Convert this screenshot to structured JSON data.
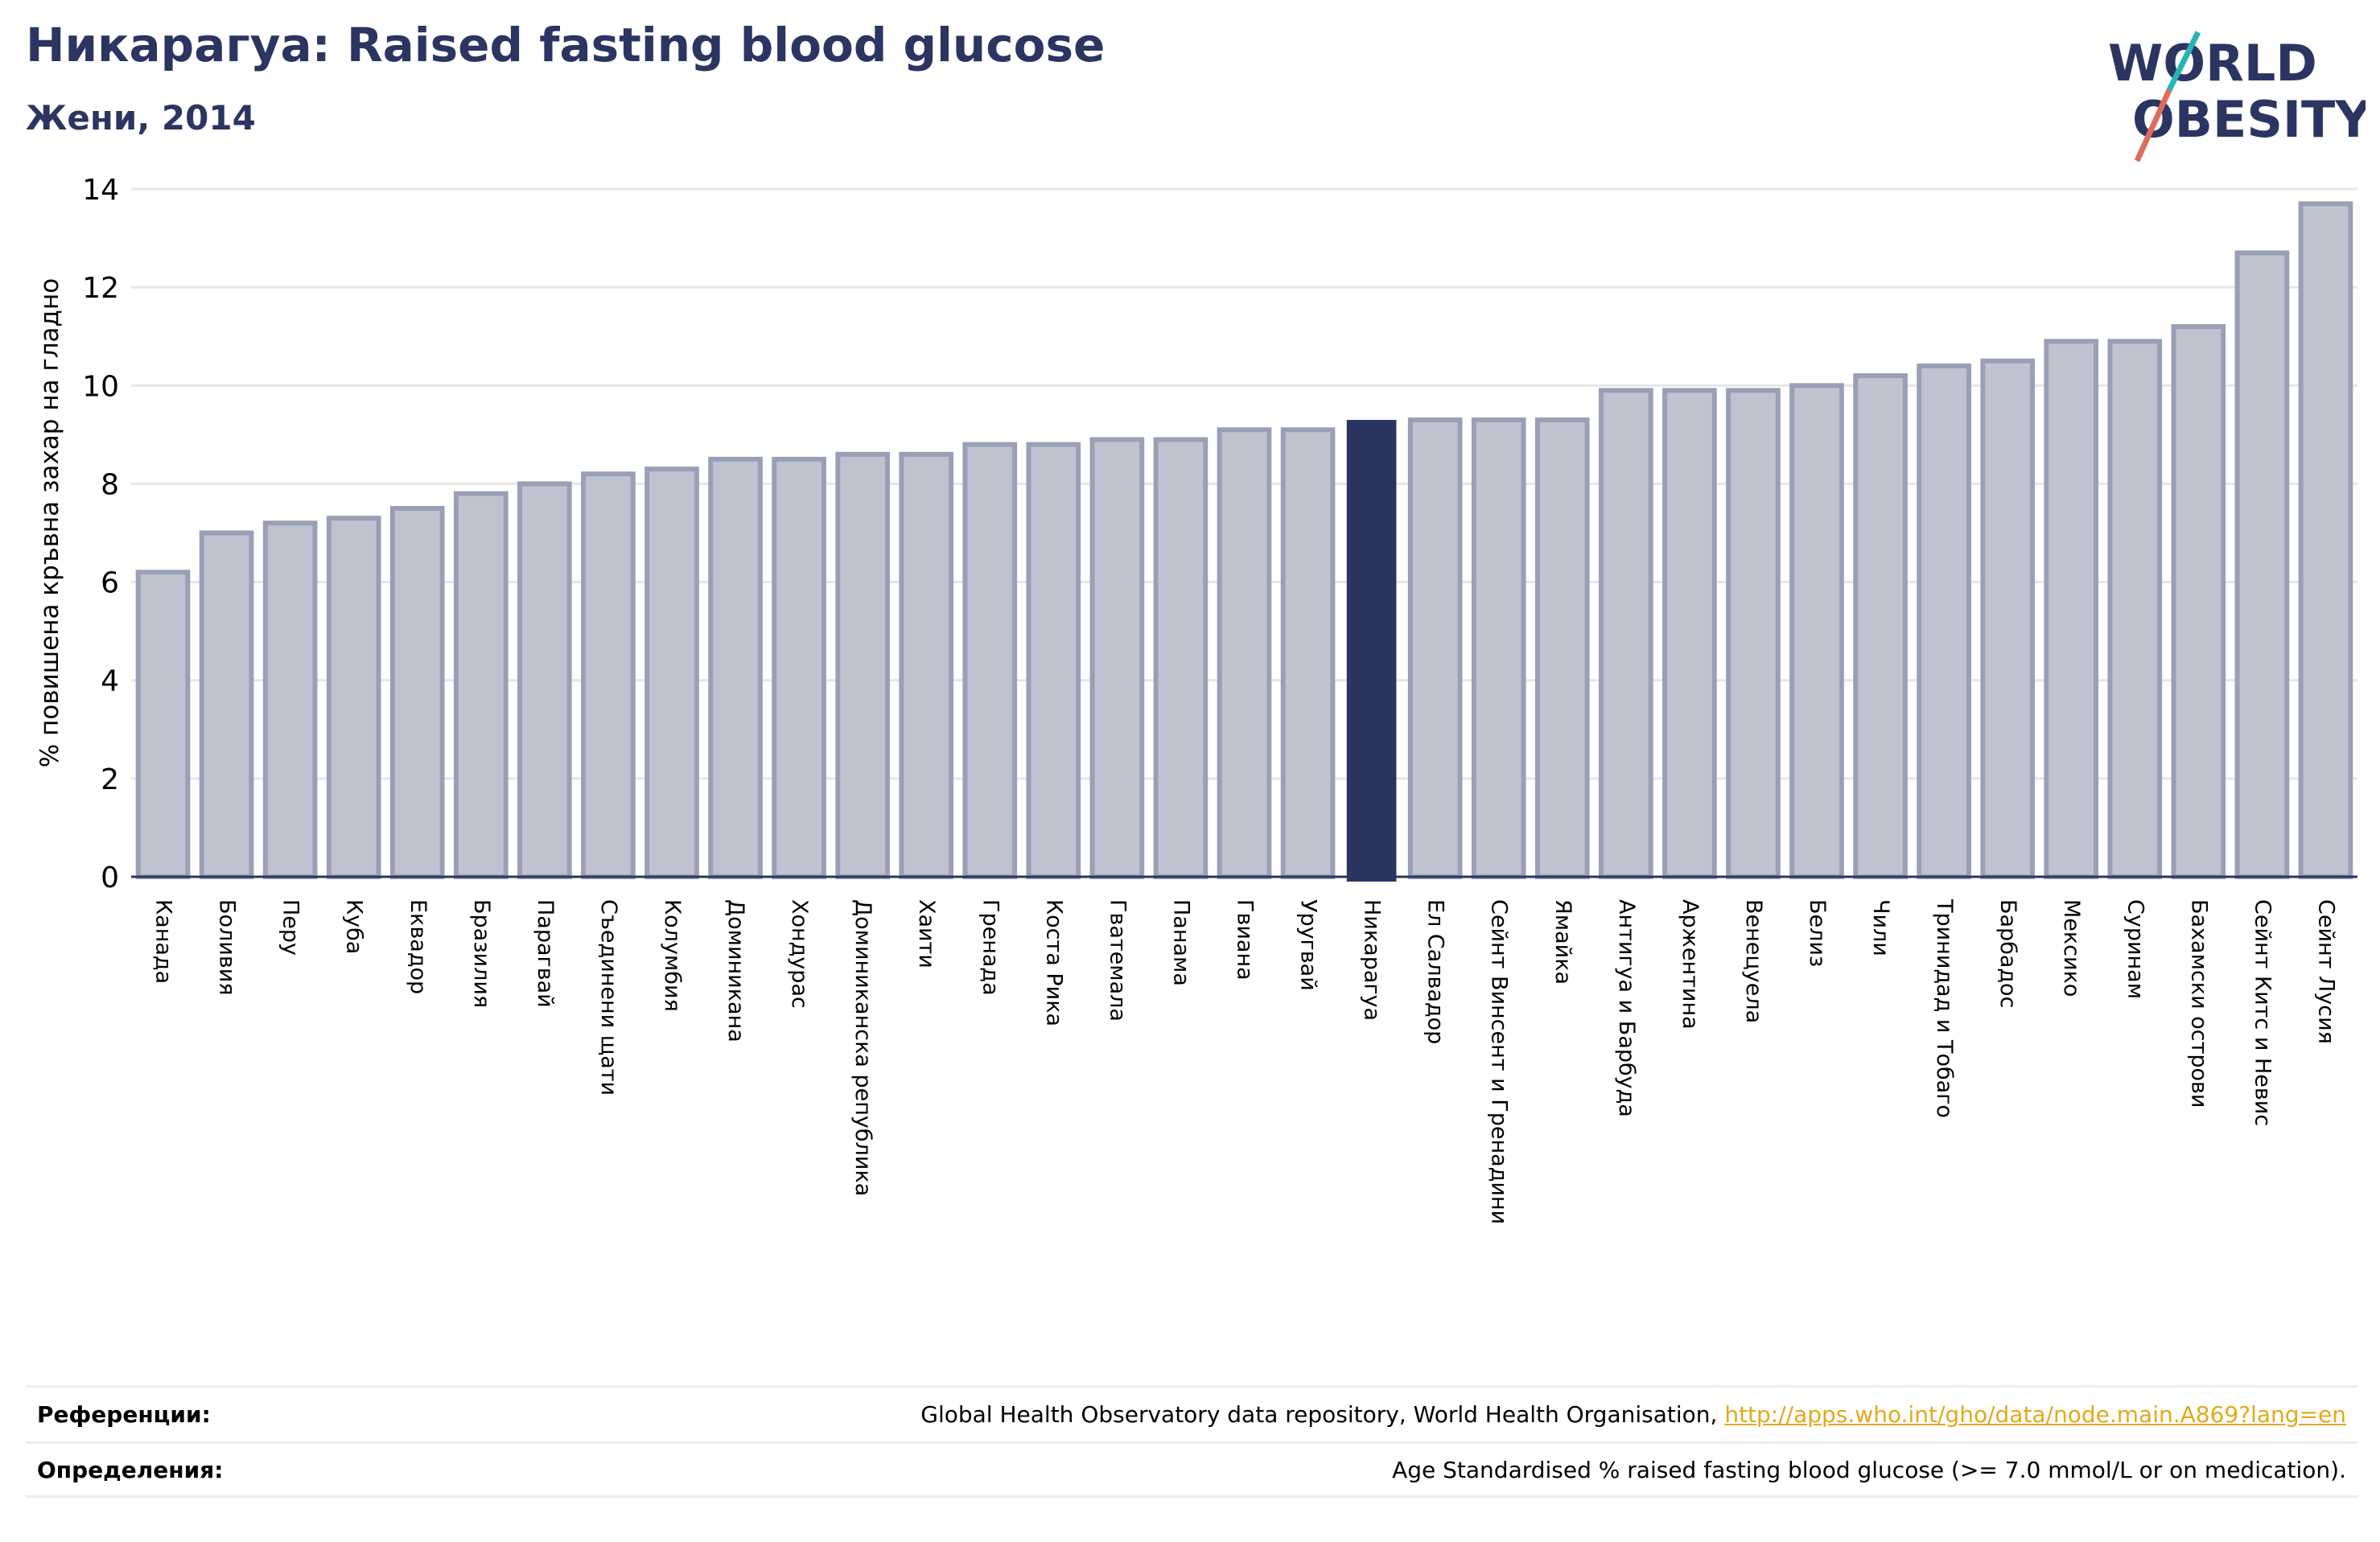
{
  "header": {
    "title": "Никарагуа: Raised fasting blood glucose",
    "subtitle": "Жени, 2014"
  },
  "logo": {
    "line1": "WORLD",
    "line2": "OBESITY",
    "colors": {
      "text": "#2b3561",
      "slash_top": "#2ab3b5",
      "slash_bottom": "#e06b5c"
    }
  },
  "chart_data": {
    "type": "bar",
    "ylabel": "% повишена кръвна захар на гладно",
    "ylim": [
      0,
      14
    ],
    "yticks": [
      0,
      2,
      4,
      6,
      8,
      10,
      12,
      14
    ],
    "grid": true,
    "highlight": "Никарагуа",
    "colors": {
      "bar": "#c0c3cf",
      "bar_edge": "#9a9fb7",
      "highlight": "#2b3561",
      "grid": "#e6e6e6",
      "axis": "#2b3561"
    },
    "categories": [
      "Канада",
      "Боливия",
      "Перу",
      "Куба",
      "Еквадор",
      "Бразилия",
      "Парагвай",
      "Съединени щати",
      "Колумбия",
      "Доминикана",
      "Хондурас",
      "Доминиканска република",
      "Хаити",
      "Гренада",
      "Коста Рика",
      "Гватемала",
      "Панама",
      "Гвиана",
      "Уругвай",
      "Никарагуа",
      "Ел Салвадор",
      "Сейнт Винсент и Гренадини",
      "Ямайка",
      "Антигуа и Барбуда",
      "Аржентина",
      "Венецуела",
      "Белиз",
      "Чили",
      "Тринидад и Тобаго",
      "Барбадос",
      "Мексико",
      "Суринам",
      "Бахамски острови",
      "Сейнт Китс и Невис",
      "Сейнт Лусия"
    ],
    "values": [
      6.2,
      7.0,
      7.2,
      7.3,
      7.5,
      7.8,
      8.0,
      8.2,
      8.3,
      8.5,
      8.5,
      8.6,
      8.6,
      8.8,
      8.8,
      8.9,
      8.9,
      9.1,
      9.1,
      9.3,
      9.3,
      9.3,
      9.3,
      9.9,
      9.9,
      9.9,
      10.0,
      10.2,
      10.4,
      10.5,
      10.9,
      10.9,
      11.2,
      12.7,
      13.7
    ]
  },
  "references": {
    "label": "Референции:",
    "text": "Global Health Observatory data repository, World Health Organisation, ",
    "link": "http://apps.who.int/gho/data/node.main.A869?lang=en"
  },
  "definitions": {
    "label": "Определения:",
    "text": "Age Standardised % raised fasting blood glucose (>= 7.0 mmol/L or on medication)."
  }
}
